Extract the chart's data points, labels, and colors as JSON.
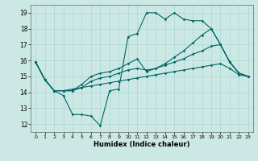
{
  "xlabel": "Humidex (Indice chaleur)",
  "background_color": "#cce8e4",
  "grid_color": "#aad8d4",
  "line_color": "#006666",
  "xlim": [
    -0.5,
    23.5
  ],
  "ylim": [
    11.5,
    19.5
  ],
  "xticks": [
    0,
    1,
    2,
    3,
    4,
    5,
    6,
    7,
    8,
    9,
    10,
    11,
    12,
    13,
    14,
    15,
    16,
    17,
    18,
    19,
    20,
    21,
    22,
    23
  ],
  "yticks": [
    12,
    13,
    14,
    15,
    16,
    17,
    18,
    19
  ],
  "line1_y": [
    15.9,
    14.8,
    14.1,
    13.8,
    12.6,
    12.6,
    12.5,
    11.9,
    14.1,
    14.2,
    17.5,
    17.7,
    19.0,
    19.0,
    18.6,
    19.0,
    18.6,
    18.5,
    18.5,
    18.0,
    17.0,
    15.9,
    15.2,
    15.0
  ],
  "line2_y": [
    15.9,
    14.8,
    14.1,
    14.1,
    14.1,
    14.5,
    15.0,
    15.2,
    15.3,
    15.5,
    15.8,
    16.1,
    15.3,
    15.5,
    15.8,
    16.2,
    16.6,
    17.1,
    17.6,
    18.0,
    17.0,
    15.9,
    15.2,
    15.0
  ],
  "line3_y": [
    15.9,
    14.8,
    14.1,
    14.1,
    14.1,
    14.3,
    14.7,
    14.9,
    15.0,
    15.2,
    15.4,
    15.5,
    15.4,
    15.5,
    15.7,
    15.9,
    16.1,
    16.4,
    16.6,
    16.9,
    17.0,
    15.9,
    15.2,
    15.0
  ],
  "line4_y": [
    15.9,
    14.8,
    14.1,
    14.1,
    14.2,
    14.3,
    14.4,
    14.5,
    14.6,
    14.7,
    14.8,
    14.9,
    15.0,
    15.1,
    15.2,
    15.3,
    15.4,
    15.5,
    15.6,
    15.7,
    15.8,
    15.5,
    15.1,
    15.0
  ]
}
